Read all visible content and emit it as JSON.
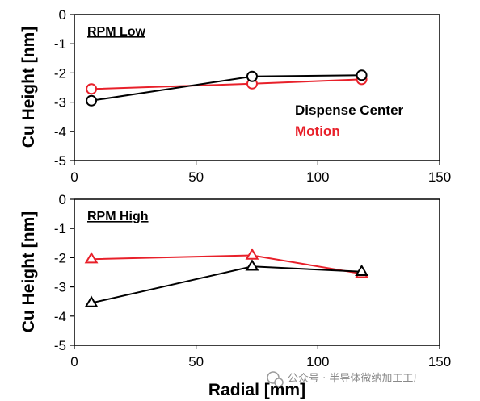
{
  "chart_data": [
    {
      "type": "line",
      "panel_label": "RPM Low",
      "xlabel": "",
      "ylabel": "Cu Height [nm]",
      "xlim": [
        0,
        150
      ],
      "ylim": [
        -5,
        0
      ],
      "xticks": [
        0,
        50,
        100,
        150
      ],
      "yticks": [
        0,
        -1,
        -2,
        -3,
        -4,
        -5
      ],
      "marker": "circle",
      "legend": [
        "Dispense Center",
        "Motion"
      ],
      "legend_position": "right",
      "series": [
        {
          "name": "Dispense Center",
          "color": "#000000",
          "points": [
            {
              "x": 7,
              "y": -2.95
            },
            {
              "x": 73,
              "y": -2.12
            },
            {
              "x": 118,
              "y": -2.08
            }
          ]
        },
        {
          "name": "Motion",
          "color": "#e8202a",
          "points": [
            {
              "x": 7,
              "y": -2.55
            },
            {
              "x": 73,
              "y": -2.37
            },
            {
              "x": 118,
              "y": -2.22
            }
          ]
        }
      ]
    },
    {
      "type": "line",
      "panel_label": "RPM High",
      "xlabel": "Radial [mm]",
      "ylabel": "Cu Height [nm]",
      "xlim": [
        0,
        150
      ],
      "ylim": [
        -5,
        0
      ],
      "xticks": [
        0,
        50,
        100,
        150
      ],
      "yticks": [
        0,
        -1,
        -2,
        -3,
        -4,
        -5
      ],
      "marker": "triangle",
      "series": [
        {
          "name": "Dispense Center",
          "color": "#000000",
          "points": [
            {
              "x": 7,
              "y": -3.55
            },
            {
              "x": 73,
              "y": -2.3
            },
            {
              "x": 118,
              "y": -2.48
            }
          ]
        },
        {
          "name": "Motion",
          "color": "#e8202a",
          "points": [
            {
              "x": 7,
              "y": -2.05
            },
            {
              "x": 73,
              "y": -1.92
            },
            {
              "x": 118,
              "y": -2.55
            }
          ]
        }
      ]
    }
  ],
  "watermark": "公众号 · 半导体微纳加工工厂"
}
